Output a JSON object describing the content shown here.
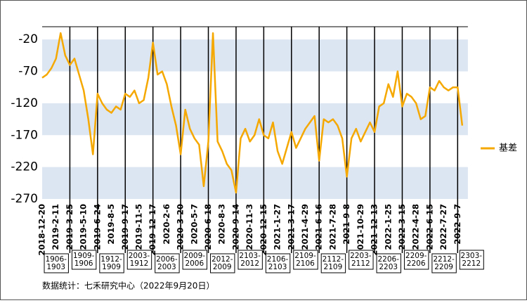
{
  "chart_data": {
    "type": "line",
    "categories": [
      "2018-12-20",
      null,
      null,
      "2019-2-11",
      null,
      null,
      "2019-3-25",
      null,
      null,
      "2019-5-10",
      null,
      null,
      "2019-6-24",
      null,
      null,
      "2019-8-5",
      null,
      null,
      "2019-9-17",
      null,
      null,
      "2019-11-5",
      null,
      null,
      "2019-12-17",
      null,
      null,
      "2020-2-6",
      null,
      null,
      "2020-3-20",
      null,
      null,
      "2020-5-7",
      null,
      null,
      "2020-6-18",
      null,
      null,
      "2020-8-3",
      null,
      null,
      "2020-9-14",
      null,
      null,
      "2020-11-3",
      null,
      null,
      "2020-12-15",
      null,
      null,
      "2021-1-27",
      null,
      null,
      "2021-3-17",
      null,
      null,
      "2021-4-29",
      null,
      null,
      "2021-6-16",
      null,
      null,
      "2021-7-28",
      null,
      null,
      "2021-9-8",
      null,
      null,
      "2021-10-29",
      null,
      null,
      "2021-12-13",
      null,
      null,
      "2022-1-25",
      null,
      null,
      "2022-3-15",
      null,
      null,
      "2022-4-28",
      null,
      null,
      "2022-6-15",
      null,
      null,
      "2022-7-27",
      null,
      null,
      "2022-9-7",
      null
    ],
    "series": [
      {
        "name": "基差",
        "color": "#f5a800",
        "values": [
          -80,
          -75,
          -65,
          -50,
          -10,
          -45,
          -60,
          -50,
          -75,
          -100,
          -145,
          -200,
          -105,
          -120,
          -130,
          -135,
          -125,
          -130,
          -105,
          -110,
          -100,
          -120,
          -115,
          -80,
          -25,
          -75,
          -70,
          -90,
          -125,
          -155,
          -200,
          -130,
          -160,
          -175,
          -185,
          -250,
          -180,
          -10,
          -180,
          -195,
          -215,
          -225,
          -260,
          -175,
          -160,
          -180,
          -170,
          -145,
          -170,
          -175,
          -150,
          -195,
          -215,
          -190,
          -165,
          -190,
          -175,
          -160,
          -150,
          -140,
          -210,
          -145,
          -150,
          -145,
          -155,
          -175,
          -235,
          -175,
          -160,
          -180,
          -165,
          -150,
          -165,
          -125,
          -120,
          -90,
          -110,
          -70,
          -125,
          -105,
          -110,
          -120,
          -145,
          -140,
          -95,
          -100,
          -85,
          -95,
          -100,
          -95,
          -95,
          -155
        ]
      }
    ],
    "ylim": [
      -270,
      0
    ],
    "yticks": [
      -20,
      -70,
      -120,
      -170,
      -220,
      -270
    ],
    "bands": true,
    "band_color": "#dce6f2",
    "legend": "right"
  },
  "contracts": [
    [
      "1906-",
      "1903"
    ],
    [
      "1909-",
      "1906"
    ],
    [
      "1912-",
      "1909"
    ],
    [
      "2003-",
      "1912"
    ],
    [
      "2006-",
      "2003"
    ],
    [
      "2009-",
      "2006"
    ],
    [
      "2012-",
      "2009"
    ],
    [
      "2103-",
      "2012"
    ],
    [
      "2106-",
      "2103"
    ],
    [
      "2109-",
      "2106"
    ],
    [
      "2112-",
      "2109"
    ],
    [
      "2203-",
      "2112"
    ],
    [
      "2206-",
      "2203"
    ],
    [
      "2209-",
      "2206"
    ],
    [
      "2212-",
      "2209"
    ],
    [
      "2303-",
      "2212"
    ]
  ],
  "source": "数据统计：七禾研究中心（2022年9月20日）"
}
